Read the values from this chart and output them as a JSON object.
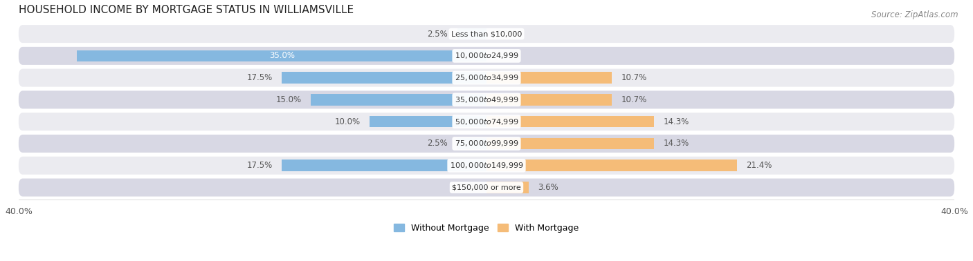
{
  "title": "HOUSEHOLD INCOME BY MORTGAGE STATUS IN WILLIAMSVILLE",
  "source": "Source: ZipAtlas.com",
  "categories": [
    "Less than $10,000",
    "$10,000 to $24,999",
    "$25,000 to $34,999",
    "$35,000 to $49,999",
    "$50,000 to $74,999",
    "$75,000 to $99,999",
    "$100,000 to $149,999",
    "$150,000 or more"
  ],
  "without_mortgage": [
    2.5,
    35.0,
    17.5,
    15.0,
    10.0,
    2.5,
    17.5,
    0.0
  ],
  "with_mortgage": [
    0.0,
    0.0,
    10.7,
    10.7,
    14.3,
    14.3,
    21.4,
    3.6
  ],
  "color_without": "#85b8e0",
  "color_with": "#f5bc78",
  "bg_light": "#ebebf0",
  "bg_dark": "#d8d8e4",
  "xlim": 40.0,
  "title_fontsize": 11,
  "label_fontsize": 8.5,
  "cat_fontsize": 8,
  "tick_fontsize": 9,
  "legend_fontsize": 9,
  "source_fontsize": 8.5
}
